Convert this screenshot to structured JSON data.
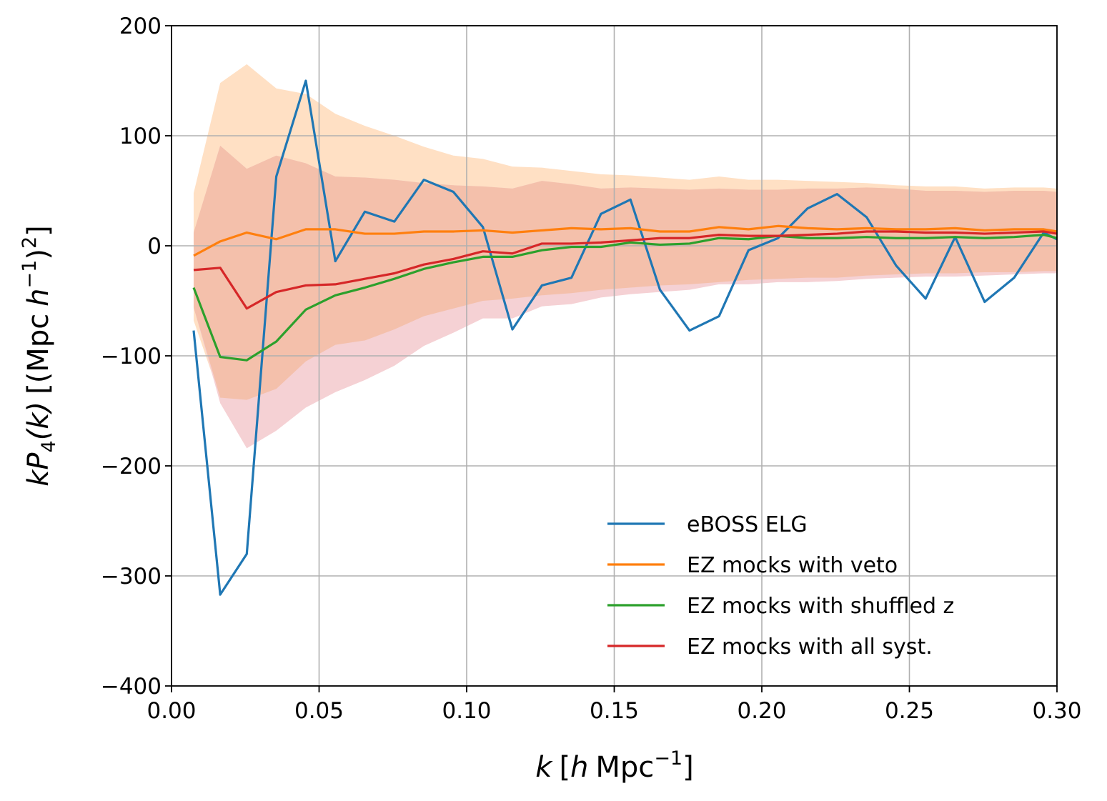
{
  "chart_data": {
    "type": "line",
    "title": "",
    "xlabel": "k [h Mpc^-1]",
    "ylabel": "kP4(k) [(Mpc h^-1)^2]",
    "xlabel_parts": {
      "italic_k": "k",
      "bracket_open": "[",
      "italic_h": "h",
      "unit": "Mpc",
      "exponent": "−1",
      "bracket_close": "]"
    },
    "ylabel_parts": {
      "italic_k": "k",
      "italic_P": "P",
      "subscript": "4",
      "paren_k": "(k)",
      "prefix": "[(Mpc",
      "italic_h": "h",
      "exponent": "−1",
      "close": ")",
      "power": "2",
      "end": "]"
    },
    "xlim": [
      0.0,
      0.3
    ],
    "ylim": [
      -400,
      200
    ],
    "grid": true,
    "legend_position": "lower-right",
    "x_ticks": [
      {
        "value": 0.0,
        "label": "0.00"
      },
      {
        "value": 0.05,
        "label": "0.05"
      },
      {
        "value": 0.1,
        "label": "0.10"
      },
      {
        "value": 0.15,
        "label": "0.15"
      },
      {
        "value": 0.2,
        "label": "0.20"
      },
      {
        "value": 0.25,
        "label": "0.25"
      },
      {
        "value": 0.3,
        "label": "0.30"
      }
    ],
    "y_ticks": [
      {
        "value": -400,
        "label": "−400"
      },
      {
        "value": -300,
        "label": "−300"
      },
      {
        "value": -200,
        "label": "−200"
      },
      {
        "value": -100,
        "label": "−100"
      },
      {
        "value": 0,
        "label": "0"
      },
      {
        "value": 100,
        "label": "100"
      },
      {
        "value": 200,
        "label": "200"
      }
    ],
    "bands": [
      {
        "name": "veto-band",
        "color": "#ffe0c4",
        "x": [
          0.0075,
          0.0165,
          0.0255,
          0.0355,
          0.0455,
          0.0555,
          0.0655,
          0.0755,
          0.0855,
          0.0955,
          0.1055,
          0.1155,
          0.1255,
          0.1355,
          0.1455,
          0.1555,
          0.1655,
          0.1755,
          0.1855,
          0.1955,
          0.2055,
          0.2155,
          0.2255,
          0.2355,
          0.2455,
          0.2555,
          0.2655,
          0.2755,
          0.2855,
          0.2955,
          0.3
        ],
        "upper": [
          48,
          148,
          165,
          143,
          138,
          120,
          109,
          100,
          90,
          82,
          79,
          72,
          71,
          68,
          65,
          64,
          62,
          60,
          63,
          60,
          60,
          59,
          58,
          57,
          55,
          54,
          54,
          52,
          53,
          53,
          52
        ],
        "lower": [
          -68,
          -138,
          -141,
          -140,
          -125,
          -112,
          -96,
          -83,
          -72,
          -65,
          -60,
          -55,
          -51,
          -48,
          -44,
          -42,
          -39,
          -37,
          -35,
          -33,
          -31,
          -30,
          -30,
          -28,
          -27,
          -26,
          -26,
          -25,
          -25,
          -24,
          -24
        ]
      },
      {
        "name": "all-syst-band",
        "color": "#f5d1d4",
        "x": [
          0.0075,
          0.0165,
          0.0255,
          0.0355,
          0.0455,
          0.0555,
          0.0655,
          0.0755,
          0.0855,
          0.0955,
          0.1055,
          0.1155,
          0.1255,
          0.1355,
          0.1455,
          0.1555,
          0.1655,
          0.1755,
          0.1855,
          0.1955,
          0.2055,
          0.2155,
          0.2255,
          0.2355,
          0.2455,
          0.2555,
          0.2655,
          0.2755,
          0.2855,
          0.2955,
          0.3
        ],
        "upper": [
          12,
          91,
          70,
          82,
          75,
          63,
          62,
          60,
          57,
          55,
          54,
          52,
          59,
          56,
          52,
          53,
          52,
          51,
          52,
          51,
          51,
          52,
          52,
          53,
          52,
          50,
          50,
          49,
          50,
          50,
          49
        ],
        "lower": [
          -56,
          -143,
          -184,
          -168,
          -147,
          -133,
          -122,
          -109,
          -91,
          -79,
          -66,
          -66,
          -55,
          -53,
          -47,
          -44,
          -42,
          -40,
          -35,
          -35,
          -33,
          -33,
          -32,
          -30,
          -29,
          -28,
          -28,
          -27,
          -26,
          -25,
          -25
        ]
      },
      {
        "name": "overlap-band",
        "color": "#f4c0ab",
        "x": [
          0.0075,
          0.0165,
          0.0255,
          0.0355,
          0.0455,
          0.0555,
          0.0655,
          0.0755,
          0.0855,
          0.0955,
          0.1055,
          0.1155,
          0.1255,
          0.1355,
          0.1455,
          0.1555,
          0.1655,
          0.1755,
          0.1855,
          0.1955,
          0.2055,
          0.2155,
          0.2255,
          0.2355,
          0.2455,
          0.2555,
          0.2655,
          0.2755,
          0.2855,
          0.2955,
          0.3
        ],
        "upper": [
          12,
          91,
          70,
          82,
          75,
          63,
          62,
          60,
          57,
          55,
          54,
          52,
          59,
          56,
          52,
          53,
          52,
          51,
          52,
          51,
          51,
          52,
          52,
          53,
          52,
          50,
          50,
          49,
          50,
          50,
          49
        ],
        "lower": [
          -56,
          -138,
          -140,
          -130,
          -105,
          -90,
          -86,
          -76,
          -64,
          -57,
          -50,
          -48,
          -45,
          -43,
          -40,
          -38,
          -36,
          -35,
          -33,
          -31,
          -30,
          -29,
          -29,
          -27,
          -26,
          -25,
          -25,
          -24,
          -24,
          -23,
          -23
        ]
      }
    ],
    "x": [
      0.0075,
      0.0165,
      0.0255,
      0.0355,
      0.0455,
      0.0555,
      0.0655,
      0.0755,
      0.0855,
      0.0955,
      0.1055,
      0.1155,
      0.1255,
      0.1355,
      0.1455,
      0.1555,
      0.1655,
      0.1755,
      0.1855,
      0.1955,
      0.2055,
      0.2155,
      0.2255,
      0.2355,
      0.2455,
      0.2555,
      0.2655,
      0.2755,
      0.2855,
      0.2955,
      0.3
    ],
    "series": [
      {
        "name": "eBOSS ELG",
        "color": "#1f77b4",
        "values": [
          -77,
          -317,
          -280,
          63,
          150,
          -14,
          31,
          22,
          60,
          49,
          17,
          -76,
          -36,
          -29,
          29,
          42,
          -40,
          -77,
          -64,
          -4,
          7,
          34,
          47,
          26,
          -18,
          -48,
          8,
          -51,
          -29,
          12,
          6
        ]
      },
      {
        "name": "EZ mocks with veto",
        "color": "#ff7f0e",
        "values": [
          -9,
          4,
          12,
          6,
          15,
          15,
          11,
          11,
          13,
          13,
          14,
          12,
          14,
          16,
          15,
          16,
          13,
          13,
          17,
          15,
          18,
          16,
          15,
          16,
          15,
          15,
          16,
          14,
          15,
          15,
          13
        ]
      },
      {
        "name": "EZ mocks with shuffled z",
        "color": "#2ca02c",
        "values": [
          -38,
          -101,
          -104,
          -87,
          -58,
          -45,
          -38,
          -30,
          -21,
          -15,
          -10,
          -10,
          -4,
          -1,
          -1,
          3,
          1,
          2,
          7,
          6,
          9,
          7,
          7,
          8,
          7,
          7,
          8,
          7,
          8,
          10,
          7
        ]
      },
      {
        "name": "EZ mocks with all syst.",
        "color": "#d62728",
        "values": [
          -22,
          -20,
          -57,
          -42,
          -36,
          -35,
          -30,
          -25,
          -17,
          -12,
          -5,
          -7,
          2,
          2,
          3,
          5,
          7,
          7,
          10,
          9,
          9,
          10,
          11,
          13,
          13,
          12,
          12,
          11,
          12,
          13,
          11
        ]
      }
    ]
  }
}
